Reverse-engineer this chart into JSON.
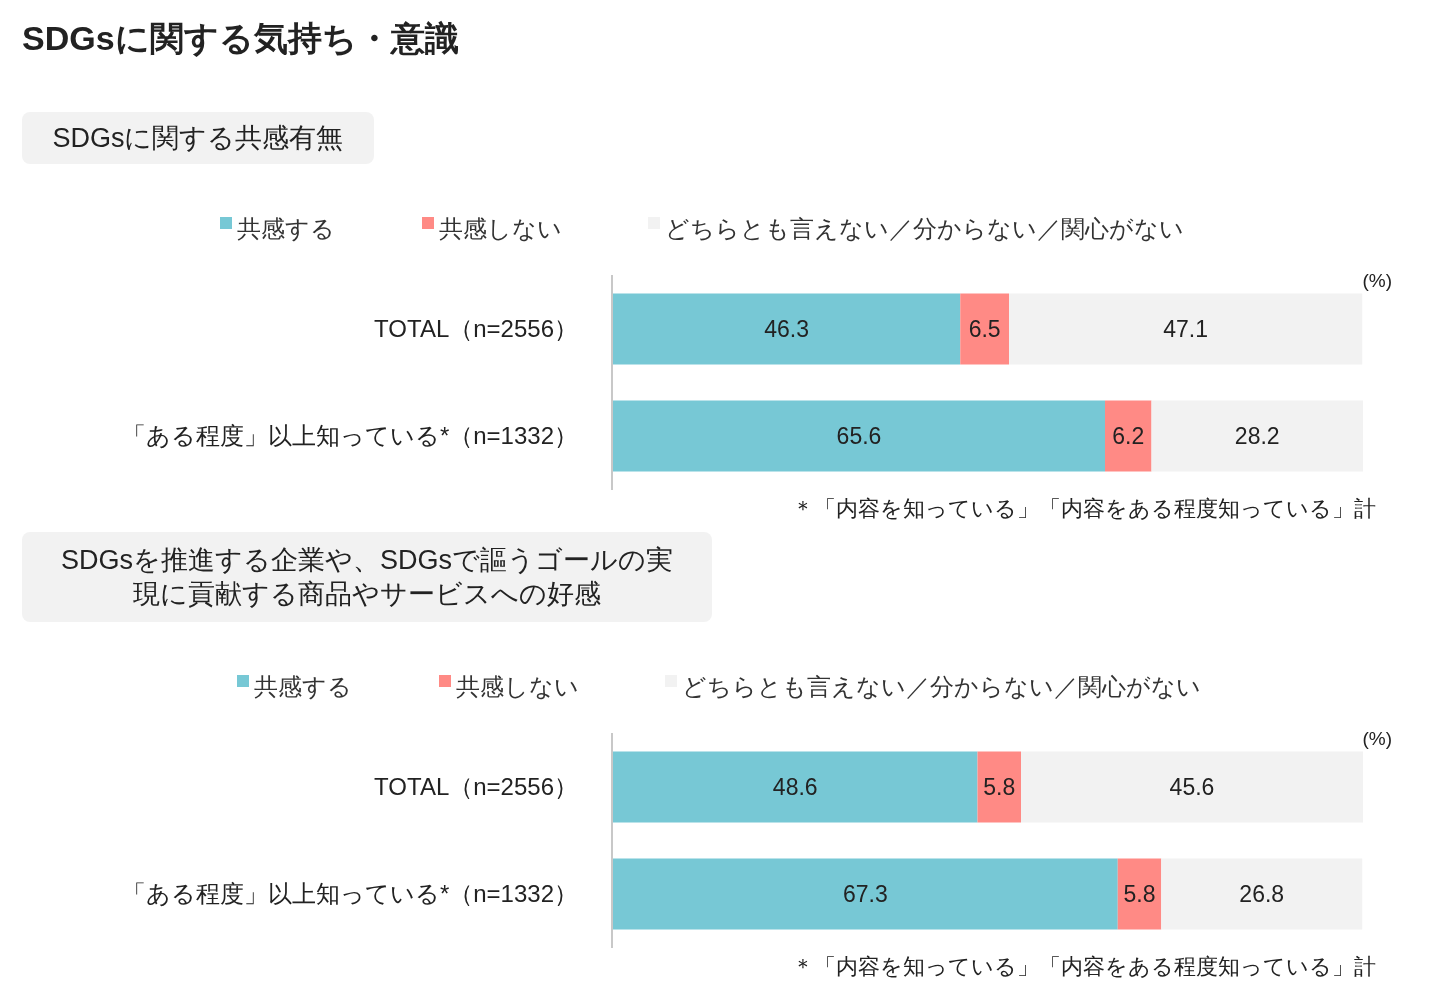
{
  "chart_data": [
    {
      "type": "bar",
      "title": "SDGsに関する気持ち・意識",
      "subtitle": "SDGsに関する共感有無",
      "orientation": "horizontal",
      "stacked": true,
      "data_labels": true,
      "legend": "top",
      "tick_labels": "y",
      "xlim": [
        0,
        100
      ],
      "categories": [
        "TOTAL（n=2556）",
        "「ある程度」以上知っている*（n=1332）"
      ],
      "series": [
        {
          "name": "共感する",
          "color": "#77c8d5",
          "values": [
            46.3,
            65.6
          ]
        },
        {
          "name": "共感しない",
          "color": "#ff8a85",
          "values": [
            6.5,
            6.2
          ]
        },
        {
          "name": "どちらとも言えない／分からない／関心がない",
          "color": "#f2f2f2",
          "values": [
            47.1,
            28.2
          ]
        }
      ],
      "annotations": [
        "(%)",
        "＊「内容を知っている」「内容をある程度知っている」計"
      ]
    },
    {
      "type": "bar",
      "title": "SDGsを推進する企業や、SDGsで謳うゴールの実現に貢献する商品やサービスへの好感",
      "orientation": "horizontal",
      "stacked": true,
      "data_labels": true,
      "legend": "top",
      "tick_labels": "y",
      "xlim": [
        0,
        100
      ],
      "categories": [
        "TOTAL（n=2556）",
        "「ある程度」以上知っている*（n=1332）"
      ],
      "series": [
        {
          "name": "共感する",
          "color": "#77c8d5",
          "values": [
            48.6,
            67.3
          ]
        },
        {
          "name": "共感しない",
          "color": "#ff8a85",
          "values": [
            5.8,
            5.8
          ]
        },
        {
          "name": "どちらとも言えない／分からない／関心がない",
          "color": "#f2f2f2",
          "values": [
            45.6,
            26.8
          ]
        }
      ],
      "annotations": [
        "(%)",
        "＊「内容を知っている」「内容をある程度知っている」計"
      ]
    }
  ]
}
